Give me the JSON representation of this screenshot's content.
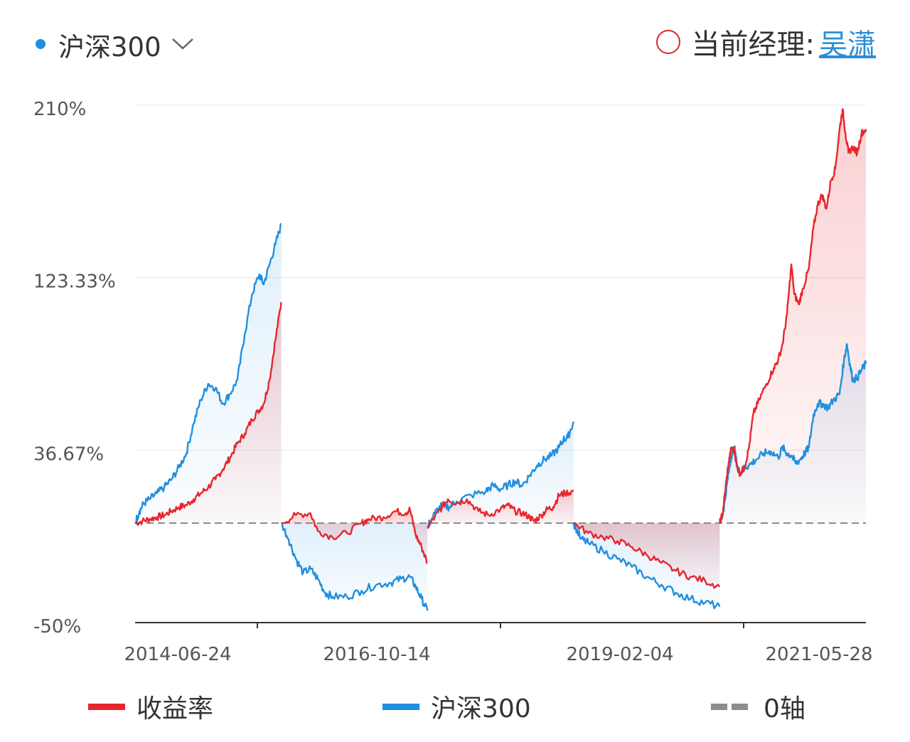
{
  "header": {
    "index_selector_label": "沪深300",
    "manager_label": "当前经理:",
    "manager_name": "吴潇"
  },
  "colors": {
    "fund": "#e8262d",
    "index": "#1f8fe0",
    "zero_axis": "#8c8c8c",
    "selector_dot": "#1f8fe0",
    "manager_ring": "#d62b2b",
    "manager_link": "#2a8fd8"
  },
  "legend": {
    "fund_label": "收益率",
    "index_label": "沪深300",
    "zero_label": "0轴"
  },
  "chart_data": {
    "type": "line",
    "title": "",
    "ylim": [
      -50,
      210
    ],
    "y_ticks": [
      "210%",
      "123.33%",
      "36.67%",
      "-50%"
    ],
    "y_tick_values": [
      210,
      123.33,
      36.67,
      -50
    ],
    "x_tick_labels": [
      "2014-06-24",
      "2016-10-14",
      "2019-02-04",
      "2021-05-28"
    ],
    "grid": true,
    "legend_position": "bottom",
    "segments": [
      {
        "fund": [
          [
            0,
            0
          ],
          [
            0.05,
            1
          ],
          [
            0.1,
            2
          ],
          [
            0.15,
            3
          ],
          [
            0.2,
            4
          ],
          [
            0.25,
            6
          ],
          [
            0.3,
            8
          ],
          [
            0.35,
            9
          ],
          [
            0.4,
            12
          ],
          [
            0.45,
            15
          ],
          [
            0.5,
            18
          ],
          [
            0.55,
            22
          ],
          [
            0.6,
            27
          ],
          [
            0.65,
            33
          ],
          [
            0.7,
            40
          ],
          [
            0.75,
            45
          ],
          [
            0.8,
            52
          ],
          [
            0.84,
            56
          ],
          [
            0.88,
            60
          ],
          [
            0.92,
            72
          ],
          [
            0.96,
            92
          ],
          [
            1,
            111
          ]
        ],
        "index": [
          [
            0,
            0
          ],
          [
            0.03,
            6
          ],
          [
            0.06,
            10
          ],
          [
            0.1,
            12
          ],
          [
            0.15,
            15
          ],
          [
            0.2,
            18
          ],
          [
            0.25,
            22
          ],
          [
            0.3,
            28
          ],
          [
            0.35,
            35
          ],
          [
            0.4,
            50
          ],
          [
            0.45,
            62
          ],
          [
            0.5,
            70
          ],
          [
            0.55,
            68
          ],
          [
            0.6,
            60
          ],
          [
            0.65,
            65
          ],
          [
            0.7,
            72
          ],
          [
            0.75,
            95
          ],
          [
            0.8,
            115
          ],
          [
            0.85,
            125
          ],
          [
            0.88,
            120
          ],
          [
            0.92,
            130
          ],
          [
            0.96,
            140
          ],
          [
            1,
            150
          ]
        ]
      },
      {
        "fund": [
          [
            0,
            0
          ],
          [
            0.1,
            4
          ],
          [
            0.2,
            5
          ],
          [
            0.25,
            -4
          ],
          [
            0.35,
            -7
          ],
          [
            0.45,
            -5
          ],
          [
            0.55,
            0
          ],
          [
            0.6,
            2
          ],
          [
            0.7,
            3
          ],
          [
            0.78,
            6
          ],
          [
            0.85,
            5
          ],
          [
            0.88,
            7
          ],
          [
            0.92,
            -6
          ],
          [
            0.96,
            -12
          ],
          [
            1,
            -20
          ]
        ],
        "index": [
          [
            0,
            0
          ],
          [
            0.05,
            -8
          ],
          [
            0.1,
            -18
          ],
          [
            0.15,
            -25
          ],
          [
            0.2,
            -23
          ],
          [
            0.25,
            -28
          ],
          [
            0.3,
            -35
          ],
          [
            0.35,
            -37
          ],
          [
            0.45,
            -37
          ],
          [
            0.55,
            -34
          ],
          [
            0.65,
            -31
          ],
          [
            0.75,
            -30
          ],
          [
            0.82,
            -28
          ],
          [
            0.88,
            -27
          ],
          [
            0.92,
            -32
          ],
          [
            0.96,
            -38
          ],
          [
            1,
            -44
          ]
        ]
      },
      {
        "fund": [
          [
            0,
            -2
          ],
          [
            0.05,
            3
          ],
          [
            0.1,
            8
          ],
          [
            0.14,
            12
          ],
          [
            0.2,
            10
          ],
          [
            0.27,
            12
          ],
          [
            0.35,
            6
          ],
          [
            0.42,
            4
          ],
          [
            0.5,
            7
          ],
          [
            0.55,
            9
          ],
          [
            0.6,
            6
          ],
          [
            0.65,
            5
          ],
          [
            0.7,
            3
          ],
          [
            0.73,
            1
          ],
          [
            0.78,
            4
          ],
          [
            0.82,
            7
          ],
          [
            0.86,
            8
          ],
          [
            0.9,
            14
          ],
          [
            0.94,
            15
          ],
          [
            1,
            16
          ]
        ],
        "index": [
          [
            0,
            -2
          ],
          [
            0.05,
            5
          ],
          [
            0.1,
            9
          ],
          [
            0.15,
            8
          ],
          [
            0.2,
            11
          ],
          [
            0.3,
            14
          ],
          [
            0.4,
            16
          ],
          [
            0.45,
            19
          ],
          [
            0.5,
            17
          ],
          [
            0.55,
            19
          ],
          [
            0.6,
            21
          ],
          [
            0.65,
            19
          ],
          [
            0.7,
            24
          ],
          [
            0.75,
            29
          ],
          [
            0.8,
            32
          ],
          [
            0.85,
            34
          ],
          [
            0.9,
            38
          ],
          [
            0.93,
            42
          ],
          [
            0.96,
            43
          ],
          [
            1,
            51
          ]
        ]
      },
      {
        "fund": [
          [
            0,
            0
          ],
          [
            0.1,
            -5
          ],
          [
            0.2,
            -7
          ],
          [
            0.3,
            -9
          ],
          [
            0.4,
            -12
          ],
          [
            0.5,
            -16
          ],
          [
            0.6,
            -20
          ],
          [
            0.7,
            -24
          ],
          [
            0.8,
            -27
          ],
          [
            0.9,
            -29
          ],
          [
            1,
            -32
          ]
        ],
        "index": [
          [
            0,
            0
          ],
          [
            0.05,
            -8
          ],
          [
            0.1,
            -10
          ],
          [
            0.2,
            -14
          ],
          [
            0.3,
            -18
          ],
          [
            0.4,
            -22
          ],
          [
            0.5,
            -27
          ],
          [
            0.6,
            -31
          ],
          [
            0.7,
            -35
          ],
          [
            0.8,
            -38
          ],
          [
            0.9,
            -40
          ],
          [
            1,
            -42
          ]
        ]
      },
      {
        "fund": [
          [
            0,
            0
          ],
          [
            0.02,
            5
          ],
          [
            0.04,
            18
          ],
          [
            0.06,
            30
          ],
          [
            0.08,
            38
          ],
          [
            0.1,
            36
          ],
          [
            0.12,
            28
          ],
          [
            0.14,
            25
          ],
          [
            0.17,
            28
          ],
          [
            0.2,
            38
          ],
          [
            0.23,
            55
          ],
          [
            0.27,
            62
          ],
          [
            0.32,
            70
          ],
          [
            0.37,
            78
          ],
          [
            0.4,
            82
          ],
          [
            0.43,
            90
          ],
          [
            0.46,
            105
          ],
          [
            0.49,
            130
          ],
          [
            0.51,
            115
          ],
          [
            0.54,
            110
          ],
          [
            0.57,
            118
          ],
          [
            0.61,
            128
          ],
          [
            0.64,
            148
          ],
          [
            0.67,
            160
          ],
          [
            0.7,
            165
          ],
          [
            0.73,
            158
          ],
          [
            0.76,
            172
          ],
          [
            0.79,
            178
          ],
          [
            0.82,
            198
          ],
          [
            0.84,
            208
          ],
          [
            0.86,
            196
          ],
          [
            0.88,
            186
          ],
          [
            0.91,
            189
          ],
          [
            0.94,
            186
          ],
          [
            0.97,
            196
          ],
          [
            1,
            198
          ]
        ],
        "index": [
          [
            0,
            0
          ],
          [
            0.02,
            4
          ],
          [
            0.04,
            14
          ],
          [
            0.06,
            25
          ],
          [
            0.08,
            34
          ],
          [
            0.1,
            38
          ],
          [
            0.12,
            28
          ],
          [
            0.14,
            25
          ],
          [
            0.17,
            28
          ],
          [
            0.2,
            29
          ],
          [
            0.25,
            32
          ],
          [
            0.3,
            35
          ],
          [
            0.35,
            36
          ],
          [
            0.4,
            33
          ],
          [
            0.43,
            38
          ],
          [
            0.46,
            35
          ],
          [
            0.49,
            34
          ],
          [
            0.52,
            30
          ],
          [
            0.55,
            32
          ],
          [
            0.58,
            35
          ],
          [
            0.61,
            38
          ],
          [
            0.64,
            54
          ],
          [
            0.67,
            60
          ],
          [
            0.7,
            60
          ],
          [
            0.74,
            58
          ],
          [
            0.78,
            62
          ],
          [
            0.82,
            65
          ],
          [
            0.85,
            82
          ],
          [
            0.87,
            90
          ],
          [
            0.89,
            80
          ],
          [
            0.91,
            72
          ],
          [
            0.94,
            73
          ],
          [
            0.97,
            77
          ],
          [
            1,
            80
          ]
        ]
      }
    ]
  }
}
